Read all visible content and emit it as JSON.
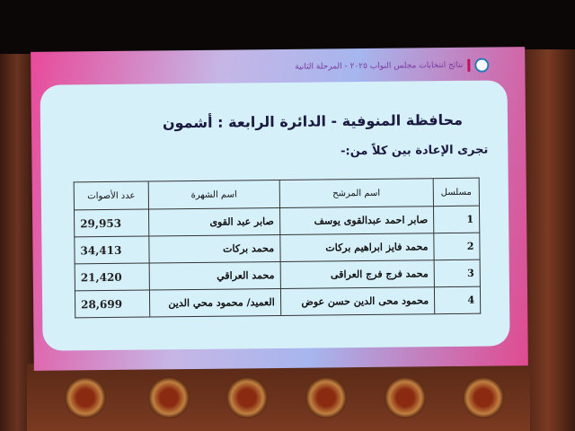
{
  "header": "نتائج انتخابات مجلس النواب ٢٠٢٥ - المرحلة الثانية",
  "title": "محافظة المنوفية - الدائرة الرابعة : أشمون",
  "subtitle": "تجرى الإعادة بين كلاً من:-",
  "table": {
    "columns": [
      "مسلسل",
      "اسم المرشح",
      "اسم الشهرة",
      "عدد الأصوات"
    ],
    "rows": [
      [
        "1",
        "صابر احمد عبدالقوى يوسف",
        "صابر عبد القوى",
        "29,953"
      ],
      [
        "2",
        "محمد فايز ابراهيم بركات",
        "محمد بركات",
        "34,413"
      ],
      [
        "3",
        "محمد فرج فرج العراقى",
        "محمد العراقي",
        "21,420"
      ],
      [
        "4",
        "محمود محى الدين حسن عوض",
        "العميد/ محمود محي الدين",
        "28,699"
      ]
    ]
  }
}
